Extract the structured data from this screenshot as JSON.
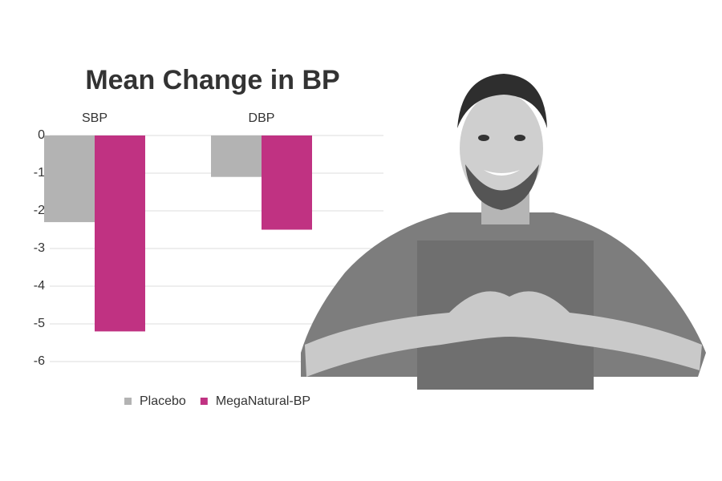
{
  "chart_data": {
    "type": "bar",
    "title": "Mean Change in BP",
    "categories": [
      "SBP",
      "DBP"
    ],
    "series": [
      {
        "name": "Placebo",
        "color": "#b3b3b3",
        "values": [
          -2.3,
          -1.1
        ]
      },
      {
        "name": "MegaNatural-BP",
        "color": "#c03282",
        "values": [
          -5.2,
          -2.5
        ]
      }
    ],
    "ylim": [
      -6,
      0
    ],
    "yticks": [
      0,
      -1,
      -2,
      -3,
      -4,
      -5,
      -6
    ],
    "grid": true,
    "legend": "bottom"
  }
}
